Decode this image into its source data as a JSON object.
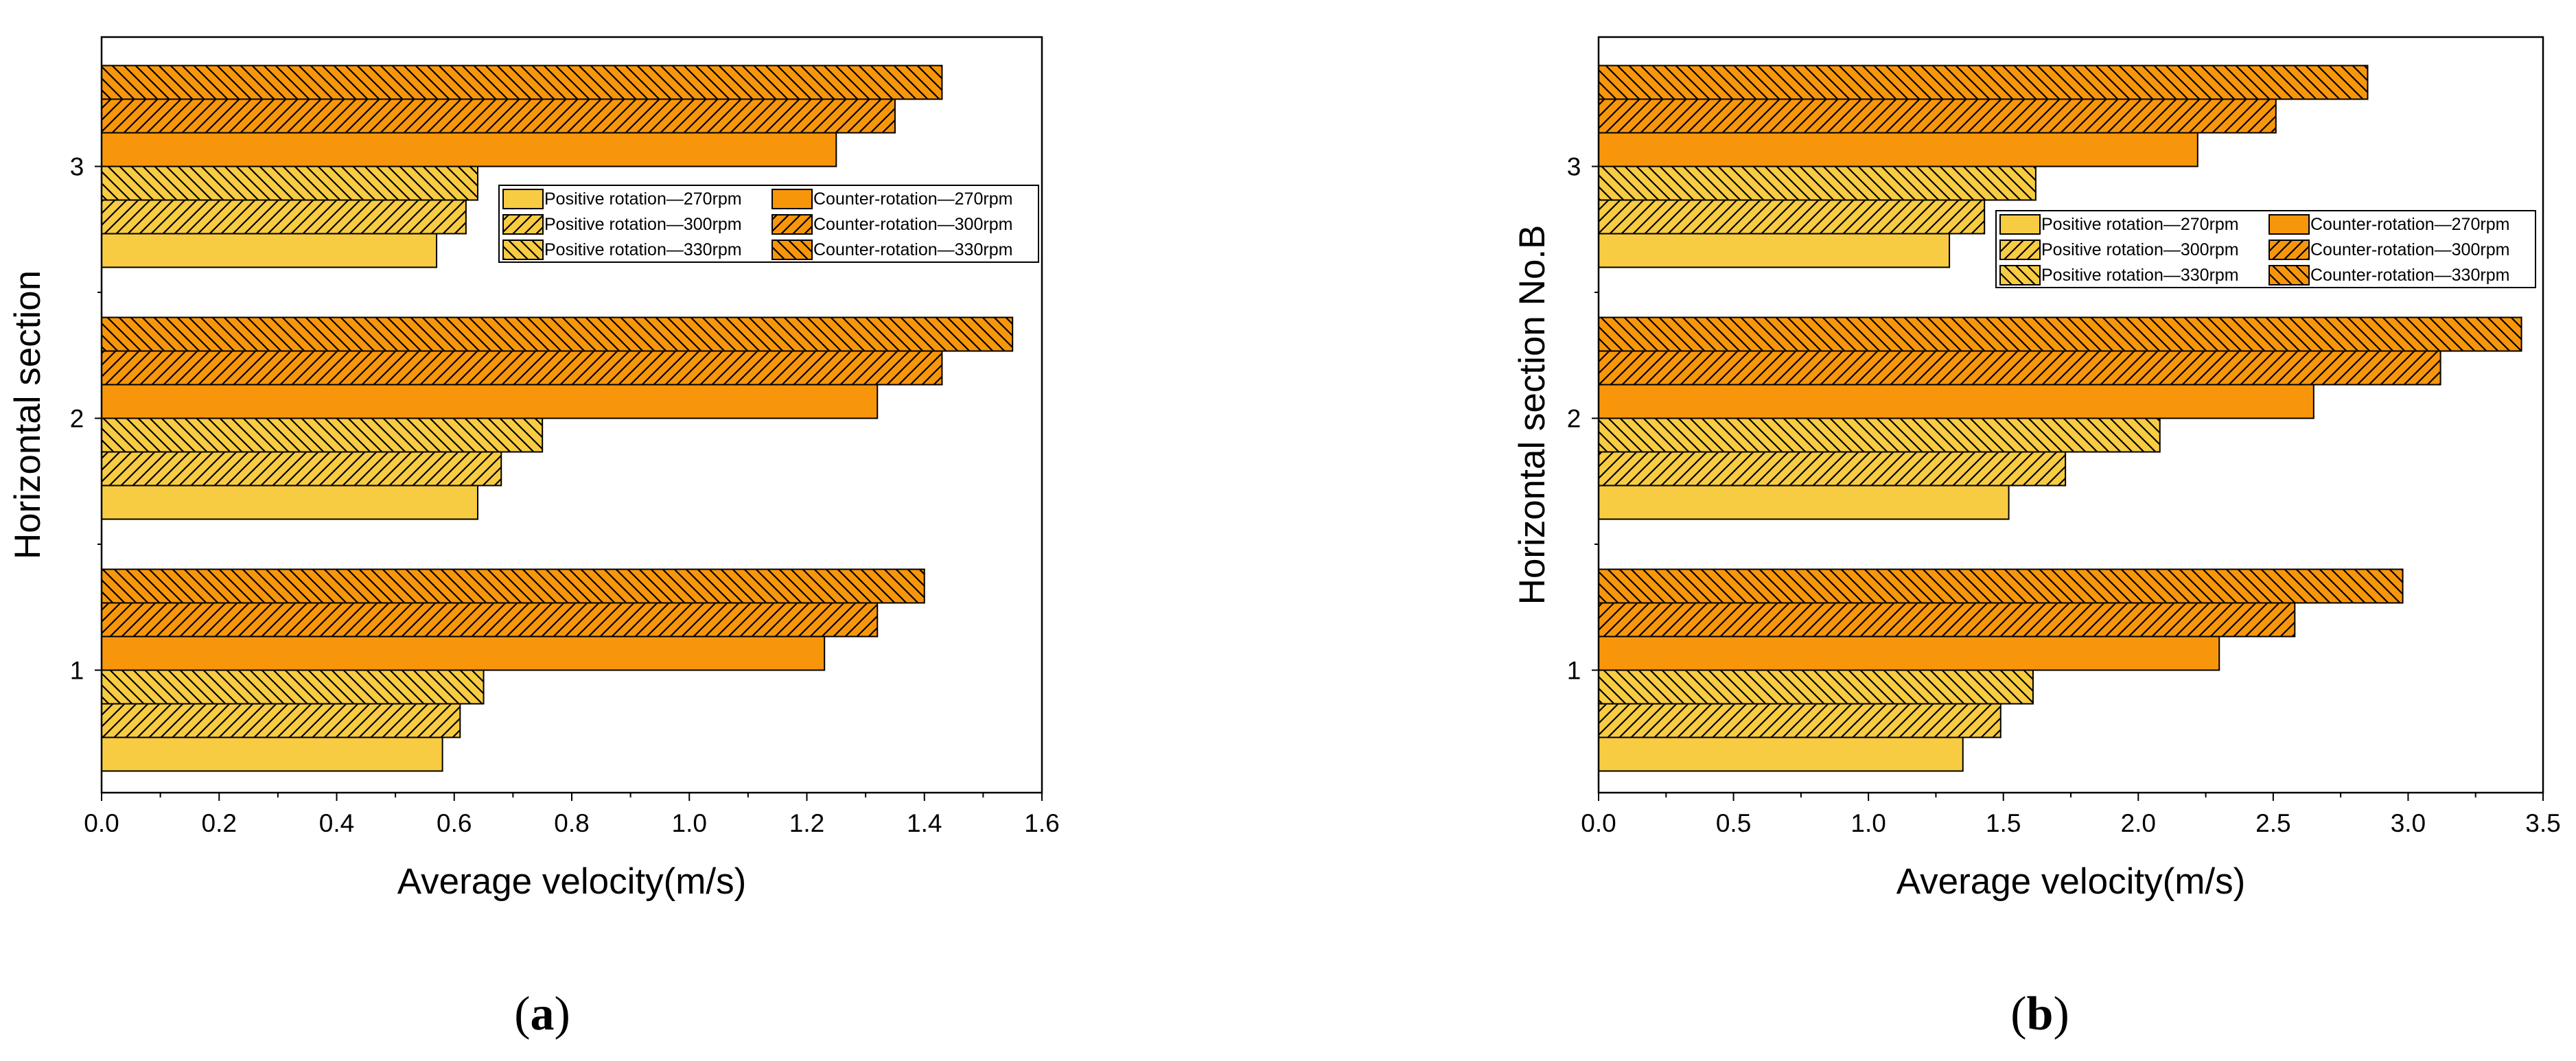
{
  "colors": {
    "positive": "#F8CC42",
    "counter": "#F8960B",
    "outline": "#000000",
    "hatch": "#000000"
  },
  "legend_entries": [
    {
      "label": "Positive rotation—270rpm",
      "group": "positive",
      "hatch": "none"
    },
    {
      "label": "Counter-rotation—270rpm",
      "group": "counter",
      "hatch": "none"
    },
    {
      "label": "Positive rotation—300rpm",
      "group": "positive",
      "hatch": "fwd"
    },
    {
      "label": "Counter-rotation—300rpm",
      "group": "counter",
      "hatch": "fwd"
    },
    {
      "label": "Positive rotation—330rpm",
      "group": "positive",
      "hatch": "back"
    },
    {
      "label": "Counter-rotation—330rpm",
      "group": "counter",
      "hatch": "back"
    }
  ],
  "chart_data": [
    {
      "type": "bar",
      "orientation": "horizontal",
      "panel_label": "a",
      "xlabel": "Average velocity(m/s)",
      "ylabel": "Horizontal section",
      "xlim": [
        0,
        1.6
      ],
      "xticks": [
        "0.0",
        "0.2",
        "0.4",
        "0.6",
        "0.8",
        "1.0",
        "1.2",
        "1.4",
        "1.6"
      ],
      "xtick_values": [
        0,
        0.2,
        0.4,
        0.6,
        0.8,
        1.0,
        1.2,
        1.4,
        1.6
      ],
      "categories": [
        "1",
        "2",
        "3"
      ],
      "series": [
        {
          "name": "Positive rotation—270rpm",
          "values": [
            0.58,
            0.64,
            0.57
          ]
        },
        {
          "name": "Positive rotation—300rpm",
          "values": [
            0.61,
            0.68,
            0.62
          ]
        },
        {
          "name": "Positive rotation—330rpm",
          "values": [
            0.65,
            0.75,
            0.64
          ]
        },
        {
          "name": "Counter-rotation—270rpm",
          "values": [
            1.23,
            1.32,
            1.25
          ]
        },
        {
          "name": "Counter-rotation—300rpm",
          "values": [
            1.32,
            1.43,
            1.35
          ]
        },
        {
          "name": "Counter-rotation—330rpm",
          "values": [
            1.4,
            1.55,
            1.43
          ]
        }
      ]
    },
    {
      "type": "bar",
      "orientation": "horizontal",
      "panel_label": "b",
      "xlabel": "Average velocity(m/s)",
      "ylabel": "Horizontal section No.B",
      "xlim": [
        0,
        3.5
      ],
      "xticks": [
        "0.0",
        "0.5",
        "1.0",
        "1.5",
        "2.0",
        "2.5",
        "3.0",
        "3.5"
      ],
      "xtick_values": [
        0,
        0.5,
        1.0,
        1.5,
        2.0,
        2.5,
        3.0,
        3.5
      ],
      "categories": [
        "1",
        "2",
        "3"
      ],
      "series": [
        {
          "name": "Positive rotation—270rpm",
          "values": [
            1.35,
            1.52,
            1.3
          ]
        },
        {
          "name": "Positive rotation—300rpm",
          "values": [
            1.49,
            1.73,
            1.43
          ]
        },
        {
          "name": "Positive rotation—330rpm",
          "values": [
            1.61,
            2.08,
            1.62
          ]
        },
        {
          "name": "Counter-rotation—270rpm",
          "values": [
            2.3,
            2.65,
            2.22
          ]
        },
        {
          "name": "Counter-rotation—300rpm",
          "values": [
            2.58,
            3.12,
            2.51
          ]
        },
        {
          "name": "Counter-rotation—330rpm",
          "values": [
            2.98,
            3.42,
            2.85
          ]
        }
      ]
    }
  ]
}
